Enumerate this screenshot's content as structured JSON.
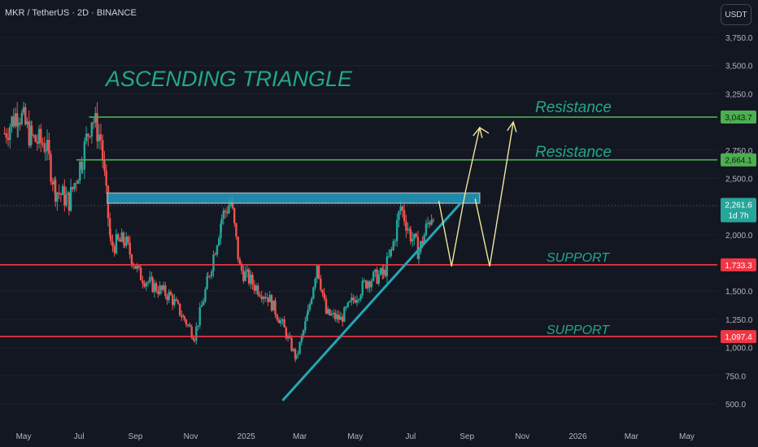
{
  "header": {
    "symbol_line": "MKR / TetherUS · 2D · BINANCE",
    "currency": "USDT"
  },
  "annotations": {
    "title": "ASCENDING TRIANGLE",
    "resistance_label": "Resistance",
    "support_label": "SUPPORT"
  },
  "colors": {
    "background": "#131722",
    "up": "#26a69a",
    "down": "#ef5350",
    "resistance": "#4caf50",
    "support": "#f23645",
    "trendline": "#22a7b5",
    "projection": "#f0e79a",
    "annotation_text": "#22a88a",
    "axis_text": "#b2b5be"
  },
  "chart_data": {
    "type": "candlestick",
    "title": "ASCENDING TRIANGLE",
    "symbol": "MKR / TetherUS",
    "interval": "2D",
    "exchange": "BINANCE",
    "y_axis": {
      "ticks": [
        500,
        750,
        1000,
        1250,
        1500,
        2000,
        2250,
        2500,
        2750,
        3250,
        3500,
        3750
      ],
      "tick_labels": [
        "500.0",
        "750.0",
        "1,000.0",
        "1,250.0",
        "1,500.0",
        "2,000.0",
        "2,250.0",
        "2,500.0",
        "2,750.0",
        "3,250.0",
        "3,500.0",
        "3,750.0"
      ],
      "range": [
        400,
        3850
      ]
    },
    "x_axis": {
      "tick_labels": [
        "May",
        "Jul",
        "Sep",
        "Nov",
        "2025",
        "Mar",
        "May",
        "Jul",
        "Sep",
        "Nov",
        "2026",
        "Mar",
        "May"
      ],
      "range": [
        "2024-04-05",
        "2026-05-31"
      ]
    },
    "price_series": [
      {
        "date": "2024-04-10",
        "close": 2900
      },
      {
        "date": "2024-04-25",
        "close": 3100
      },
      {
        "date": "2024-05-10",
        "close": 2850
      },
      {
        "date": "2024-05-25",
        "close": 2800
      },
      {
        "date": "2024-06-05",
        "close": 2400
      },
      {
        "date": "2024-06-20",
        "close": 2300
      },
      {
        "date": "2024-07-05",
        "close": 2700
      },
      {
        "date": "2024-07-15",
        "close": 3050
      },
      {
        "date": "2024-07-25",
        "close": 2850
      },
      {
        "date": "2024-08-05",
        "close": 1900
      },
      {
        "date": "2024-08-20",
        "close": 1950
      },
      {
        "date": "2024-09-05",
        "close": 1650
      },
      {
        "date": "2024-09-20",
        "close": 1550
      },
      {
        "date": "2024-10-10",
        "close": 1450
      },
      {
        "date": "2024-10-25",
        "close": 1250
      },
      {
        "date": "2024-11-05",
        "close": 1100
      },
      {
        "date": "2024-11-20",
        "close": 1600
      },
      {
        "date": "2024-12-05",
        "close": 2150
      },
      {
        "date": "2024-12-15",
        "close": 2300
      },
      {
        "date": "2024-12-25",
        "close": 1700
      },
      {
        "date": "2025-01-10",
        "close": 1550
      },
      {
        "date": "2025-01-25",
        "close": 1450
      },
      {
        "date": "2025-02-10",
        "close": 1200
      },
      {
        "date": "2025-02-25",
        "close": 900
      },
      {
        "date": "2025-03-10",
        "close": 1300
      },
      {
        "date": "2025-03-20",
        "close": 1750
      },
      {
        "date": "2025-03-30",
        "close": 1300
      },
      {
        "date": "2025-04-15",
        "close": 1250
      },
      {
        "date": "2025-05-01",
        "close": 1450
      },
      {
        "date": "2025-05-15",
        "close": 1600
      },
      {
        "date": "2025-06-01",
        "close": 1650
      },
      {
        "date": "2025-06-10",
        "close": 1850
      },
      {
        "date": "2025-06-20",
        "close": 2250
      },
      {
        "date": "2025-07-01",
        "close": 2000
      },
      {
        "date": "2025-07-10",
        "close": 1850
      },
      {
        "date": "2025-07-20",
        "close": 2100
      },
      {
        "date": "2025-07-28",
        "close": 2262
      }
    ],
    "levels": [
      {
        "kind": "resistance",
        "price": 3043.7,
        "price_label": "3,043.7",
        "start": "2024-07-12"
      },
      {
        "kind": "resistance",
        "price": 2664.1,
        "price_label": "2,664.1",
        "start": "2024-06-28"
      },
      {
        "kind": "support",
        "price": 1733.3,
        "price_label": "1,733.3",
        "start": "2024-04-05"
      },
      {
        "kind": "support",
        "price": 1097.4,
        "price_label": "1,097.4",
        "start": "2024-04-05"
      }
    ],
    "last_price": {
      "price": 2261.6,
      "label": "2,261.6",
      "countdown": "1d 7h"
    },
    "resistance_zone": {
      "start": "2024-08-01",
      "end": "2025-09-15",
      "top": 2370,
      "bottom": 2280
    },
    "trendline": [
      {
        "date": "2025-02-10",
        "price": 530
      },
      {
        "date": "2025-08-25",
        "price": 2280
      }
    ],
    "projection_paths": [
      [
        {
          "date": "2025-08-01",
          "price": 2300
        },
        {
          "date": "2025-08-15",
          "price": 1720
        },
        {
          "date": "2025-08-30",
          "price": 2370
        },
        {
          "date": "2025-09-15",
          "price": 2950
        },
        {
          "date": "2025-09-25",
          "price": 2900
        }
      ],
      [
        {
          "date": "2025-09-10",
          "price": 2320
        },
        {
          "date": "2025-09-26",
          "price": 1720
        },
        {
          "date": "2025-10-22",
          "price": 3000
        }
      ]
    ]
  }
}
